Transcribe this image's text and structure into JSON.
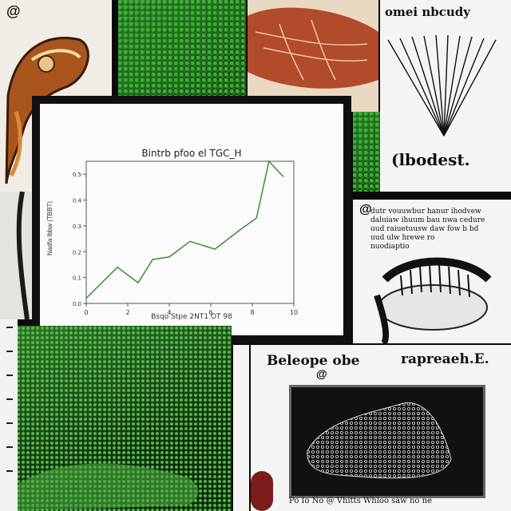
{
  "collage": {
    "top_right_title": "omei nbcudy",
    "top_right_caption": "(lbodest.",
    "top_left_marker": "@",
    "mid_right_marker": "@",
    "mid_right_text": [
      "dutr vouuwbur hanur ihodvew",
      "daluiaw ihuum bau nwa cedure",
      "uud raiuetuusw daw fow b bd",
      "uud ulw hrewe ro",
      "nuodiaptio"
    ],
    "bottom_right_title": "Beleope obe",
    "bottom_right_title_2": "rapreaeh.E.",
    "bottom_right_marker": "@",
    "bottom_footer": "Po Io No @ Vhitts Whloo saw no ne"
  },
  "chart": {
    "title": "Bintrb pfoo el TGC_H",
    "xlabel": "Bsqo Stpe 2NT1 OT 98",
    "ylabel": "Nadfa lbbw (TBBT)",
    "colors": {
      "line": "#3a8f32",
      "axis": "#555555"
    }
  },
  "chart_data": {
    "type": "line",
    "title": "Bintrb pfoo el TGC_H",
    "xlabel": "Bsqo Stpe 2NT1 OT 98",
    "ylabel": "Nadfa lbbw (TBBT)",
    "x_ticks": [
      "0",
      "2",
      "4",
      "6",
      "8",
      "10"
    ],
    "y_ticks": [
      "0.0",
      "0.1",
      "0.2",
      "0.3",
      "0.4",
      "0.5"
    ],
    "xlim": [
      0,
      10
    ],
    "ylim": [
      0,
      0.55
    ],
    "grid": false,
    "series": [
      {
        "x": [
          0,
          1.5,
          2.5,
          3.2,
          4,
          5,
          6.2,
          7.5,
          8.2,
          8.8,
          9.5
        ],
        "y": [
          0.02,
          0.14,
          0.08,
          0.17,
          0.18,
          0.24,
          0.21,
          0.29,
          0.33,
          0.55,
          0.49
        ]
      }
    ]
  }
}
